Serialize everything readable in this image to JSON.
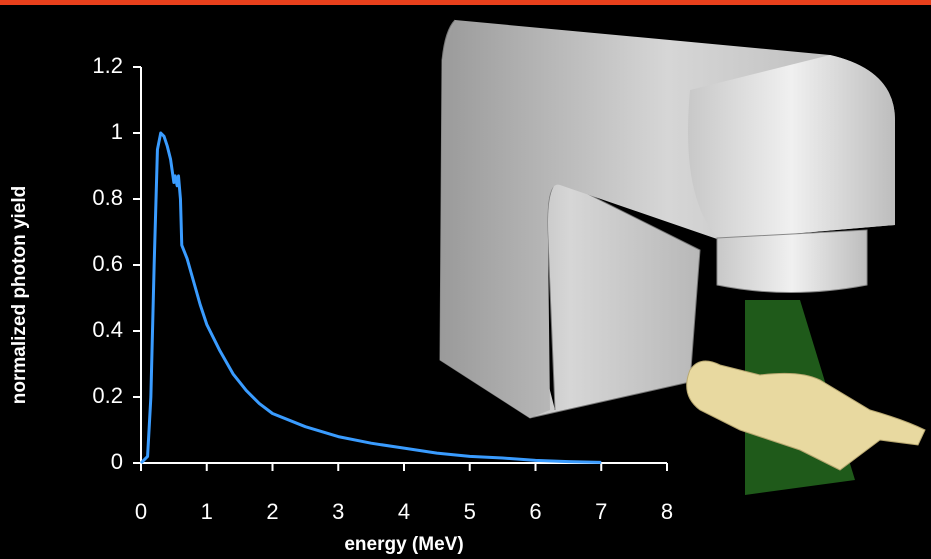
{
  "chart_data": {
    "type": "line",
    "x_label": "energy (MeV)",
    "y_label": "normalized photon yield",
    "x": [
      0,
      0.1,
      0.15,
      0.2,
      0.25,
      0.3,
      0.35,
      0.4,
      0.45,
      0.5,
      0.52,
      0.55,
      0.57,
      0.6,
      0.62,
      0.7,
      0.8,
      0.9,
      1.0,
      1.2,
      1.4,
      1.6,
      1.8,
      2.0,
      2.5,
      3.0,
      3.5,
      4.0,
      4.5,
      5.0,
      5.5,
      6.0,
      6.5,
      7.0
    ],
    "values": [
      0,
      0.02,
      0.2,
      0.6,
      0.95,
      1.0,
      0.99,
      0.96,
      0.92,
      0.85,
      0.87,
      0.84,
      0.87,
      0.8,
      0.66,
      0.62,
      0.55,
      0.48,
      0.42,
      0.34,
      0.27,
      0.22,
      0.18,
      0.15,
      0.11,
      0.08,
      0.06,
      0.045,
      0.03,
      0.02,
      0.015,
      0.008,
      0.004,
      0.002
    ],
    "color": "#3a9cff",
    "xlim": [
      0,
      8
    ],
    "xticks": [
      0,
      1,
      2,
      3,
      4,
      5,
      6,
      7,
      8
    ],
    "ylim": [
      0,
      1.2
    ],
    "yticks": [
      0,
      0.2,
      0.4,
      0.6,
      0.8,
      1,
      1.2
    ]
  }
}
